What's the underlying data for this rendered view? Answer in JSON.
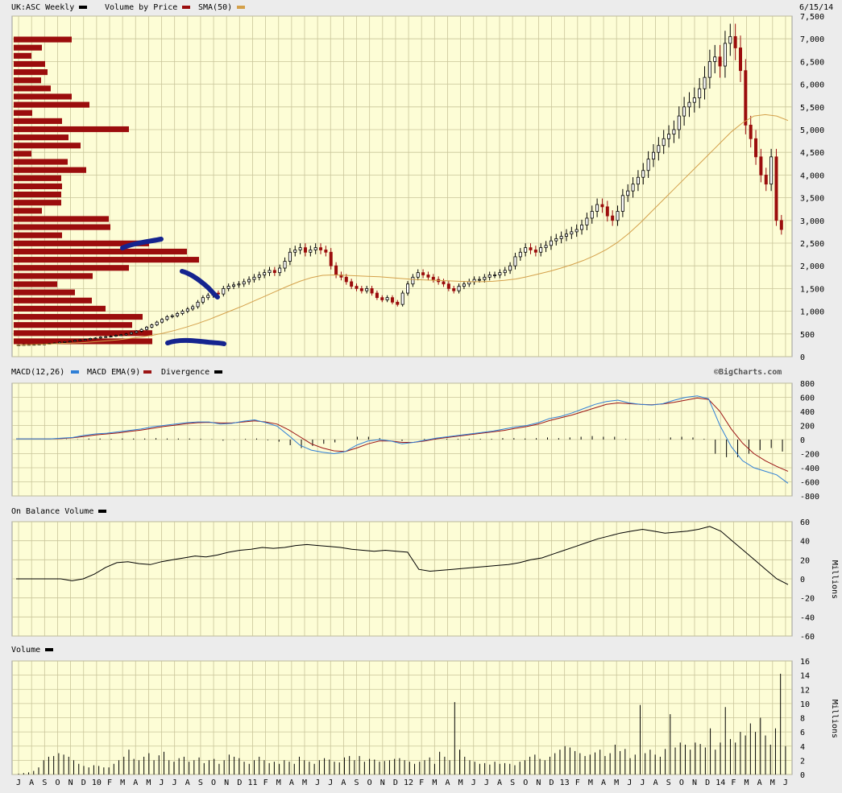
{
  "header": {
    "symbol_label": "UK:ASC Weekly",
    "vbp_label": "Volume by Price",
    "sma_label": "SMA(50)",
    "date": "6/15/14",
    "colors": {
      "price": "#000000",
      "vbp": "#9b0d0d",
      "sma": "#d4a04a"
    }
  },
  "macd_header": {
    "macd_label": "MACD(12,26)",
    "ema_label": "MACD EMA(9)",
    "div_label": "Divergence",
    "watermark": "©BigCharts.com",
    "colors": {
      "macd": "#2f7fd6",
      "ema": "#9b1414",
      "div": "#000000"
    }
  },
  "obv_header": {
    "label": "On Balance Volume",
    "units": "Millions"
  },
  "vol_header": {
    "label": "Volume",
    "units": "Millions"
  },
  "x_axis": {
    "labels": [
      "J",
      "A",
      "S",
      "O",
      "N",
      "D",
      "10",
      "F",
      "M",
      "A",
      "M",
      "J",
      "J",
      "A",
      "S",
      "O",
      "N",
      "D",
      "11",
      "F",
      "M",
      "A",
      "M",
      "J",
      "J",
      "A",
      "S",
      "O",
      "N",
      "D",
      "12",
      "F",
      "M",
      "A",
      "M",
      "J",
      "J",
      "A",
      "S",
      "O",
      "N",
      "D",
      "13",
      "F",
      "M",
      "A",
      "M",
      "J",
      "J",
      "A",
      "S",
      "O",
      "N",
      "D",
      "14",
      "F",
      "M",
      "A",
      "M",
      "J"
    ]
  },
  "chart_data": [
    {
      "type": "candlestick",
      "name": "price",
      "ylim": [
        0,
        7500
      ],
      "yticks": [
        0,
        500,
        1000,
        1500,
        2000,
        2500,
        3000,
        3500,
        4000,
        4500,
        5000,
        5500,
        6000,
        6500,
        7000,
        7500
      ],
      "grid": true,
      "close_series_approx": [
        260,
        265,
        268,
        270,
        275,
        280,
        290,
        300,
        320,
        330,
        340,
        360,
        370,
        380,
        400,
        410,
        430,
        440,
        450,
        470,
        480,
        500,
        530,
        560,
        600,
        650,
        700,
        760,
        820,
        880,
        900,
        950,
        1000,
        1050,
        1100,
        1200,
        1300,
        1350,
        1400,
        1380,
        1500,
        1550,
        1580,
        1600,
        1650,
        1700,
        1750,
        1800,
        1850,
        1900,
        1850,
        1950,
        2100,
        2300,
        2350,
        2400,
        2300,
        2350,
        2400,
        2350,
        2300,
        2000,
        1800,
        1750,
        1650,
        1550,
        1500,
        1450,
        1500,
        1400,
        1300,
        1250,
        1300,
        1200,
        1150,
        1400,
        1600,
        1750,
        1850,
        1800,
        1750,
        1700,
        1650,
        1600,
        1500,
        1450,
        1550,
        1600,
        1650,
        1700,
        1700,
        1750,
        1800,
        1800,
        1850,
        1900,
        2000,
        2200,
        2300,
        2400,
        2350,
        2300,
        2400,
        2450,
        2550,
        2600,
        2650,
        2700,
        2750,
        2800,
        2900,
        3050,
        3200,
        3350,
        3300,
        3100,
        3000,
        3200,
        3550,
        3650,
        3800,
        3950,
        4100,
        4350,
        4500,
        4650,
        4800,
        4900,
        5000,
        5300,
        5500,
        5600,
        5700,
        5900,
        6150,
        6500,
        6600,
        6400,
        6900,
        7050,
        6800,
        6300,
        5100,
        4800,
        4400,
        4000,
        3800,
        4400,
        3000,
        2800
      ]
    },
    {
      "type": "bar",
      "name": "volume_by_price",
      "orientation": "horizontal",
      "note_values": "relative bar length per price band, bottom to top",
      "values": [
        172,
        172,
        147,
        160,
        114,
        97,
        76,
        54,
        98,
        143,
        230,
        215,
        168,
        60,
        120,
        118,
        35,
        59,
        59,
        60,
        59,
        90,
        67,
        22,
        83,
        68,
        143,
        60,
        23,
        94,
        72,
        46,
        34,
        42,
        39,
        22,
        35,
        72
      ]
    },
    {
      "type": "line",
      "name": "SMA(50)",
      "ylim": [
        0,
        7500
      ],
      "values_approx": [
        250,
        260,
        270,
        280,
        290,
        300,
        310,
        330,
        350,
        370,
        400,
        430,
        470,
        520,
        580,
        650,
        730,
        820,
        920,
        1020,
        1120,
        1230,
        1340,
        1450,
        1560,
        1660,
        1740,
        1790,
        1800,
        1790,
        1780,
        1770,
        1760,
        1740,
        1720,
        1700,
        1690,
        1680,
        1670,
        1660,
        1650,
        1650,
        1660,
        1680,
        1710,
        1760,
        1820,
        1880,
        1950,
        2030,
        2120,
        2230,
        2360,
        2520,
        2720,
        2950,
        3200,
        3450,
        3700,
        3950,
        4200,
        4450,
        4700,
        4950,
        5150,
        5300,
        5330,
        5300,
        5200
      ]
    },
    {
      "type": "line",
      "name": "MACD",
      "ylim": [
        -800,
        800
      ],
      "yticks": [
        800,
        600,
        400,
        200,
        0,
        -200,
        -400,
        -600,
        -800
      ],
      "series": [
        {
          "name": "MACD(12,26)",
          "values_approx": [
            10,
            10,
            10,
            10,
            20,
            30,
            60,
            80,
            90,
            110,
            130,
            150,
            180,
            200,
            220,
            240,
            250,
            250,
            220,
            230,
            260,
            280,
            240,
            190,
            60,
            -80,
            -150,
            -180,
            -200,
            -170,
            -80,
            -20,
            0,
            -20,
            -60,
            -40,
            -10,
            20,
            40,
            60,
            80,
            100,
            120,
            150,
            180,
            200,
            240,
            300,
            330,
            380,
            440,
            500,
            540,
            560,
            520,
            500,
            490,
            510,
            560,
            600,
            620,
            580,
            200,
            -100,
            -300,
            -400,
            -450,
            -500,
            -620
          ]
        },
        {
          "name": "MACD EMA(9)",
          "values_approx": [
            10,
            10,
            10,
            10,
            15,
            25,
            45,
            65,
            80,
            95,
            115,
            135,
            160,
            185,
            205,
            225,
            240,
            245,
            235,
            235,
            250,
            265,
            250,
            220,
            140,
            40,
            -60,
            -120,
            -160,
            -170,
            -120,
            -60,
            -20,
            -20,
            -40,
            -40,
            -20,
            10,
            30,
            50,
            70,
            90,
            110,
            130,
            160,
            185,
            220,
            270,
            310,
            350,
            400,
            450,
            500,
            520,
            510,
            500,
            495,
            505,
            530,
            560,
            590,
            570,
            400,
            150,
            -50,
            -200,
            -300,
            -380,
            -450
          ]
        },
        {
          "name": "Divergence",
          "values_approx": [
            0,
            0,
            0,
            0,
            5,
            5,
            15,
            15,
            10,
            15,
            15,
            15,
            20,
            15,
            15,
            15,
            10,
            5,
            -15,
            -5,
            10,
            15,
            -10,
            -30,
            -80,
            -120,
            -90,
            -60,
            -40,
            0,
            40,
            40,
            20,
            0,
            -20,
            0,
            10,
            10,
            10,
            10,
            10,
            10,
            10,
            20,
            20,
            15,
            20,
            30,
            20,
            30,
            40,
            50,
            40,
            40,
            10,
            0,
            -5,
            5,
            30,
            40,
            30,
            10,
            -200,
            -250,
            -250,
            -200,
            -150,
            -120,
            -170
          ]
        }
      ]
    },
    {
      "type": "line",
      "name": "On Balance Volume",
      "ylim": [
        -60,
        60
      ],
      "yticks": [
        60,
        40,
        20,
        0,
        -20,
        -40,
        -60
      ],
      "values_approx": [
        0,
        0,
        0,
        0,
        0,
        -2,
        0,
        5,
        12,
        17,
        18,
        16,
        15,
        18,
        20,
        22,
        24,
        23,
        25,
        28,
        30,
        31,
        33,
        32,
        33,
        35,
        36,
        35,
        34,
        33,
        31,
        30,
        29,
        30,
        29,
        28,
        10,
        8,
        9,
        10,
        11,
        12,
        13,
        14,
        15,
        17,
        20,
        22,
        26,
        30,
        34,
        38,
        42,
        45,
        48,
        50,
        52,
        50,
        48,
        49,
        50,
        52,
        55,
        50,
        40,
        30,
        20,
        10,
        0,
        -6
      ]
    },
    {
      "type": "bar",
      "name": "Volume",
      "ylim": [
        0,
        16
      ],
      "yticks": [
        16,
        14,
        12,
        10,
        8,
        6,
        4,
        2,
        0
      ],
      "values_approx": [
        0.1,
        0.2,
        0.3,
        0.5,
        1,
        2,
        2.5,
        2.6,
        3,
        2.8,
        2.5,
        2,
        1.5,
        1.2,
        1,
        1.3,
        1.2,
        1,
        1,
        1.5,
        2,
        2.5,
        3.5,
        2.2,
        2,
        2.5,
        3,
        2,
        2.7,
        3.2,
        2,
        1.8,
        2.3,
        2.5,
        1.8,
        2,
        2.4,
        1.6,
        2,
        2.2,
        1.5,
        2,
        2.8,
        2.5,
        2.3,
        1.8,
        1.5,
        2,
        2.5,
        2,
        1.6,
        1.8,
        1.5,
        2,
        1.8,
        1.5,
        2.5,
        2,
        1.8,
        1.5,
        2,
        2.3,
        2.1,
        1.8,
        1.7,
        2.4,
        2.6,
        2,
        2.6,
        1.8,
        2.2,
        2.1,
        1.8,
        1.9,
        2,
        2.2,
        2.3,
        2,
        1.8,
        1.5,
        1.8,
        2,
        2.4,
        1.5,
        3.2,
        2.5,
        2,
        10.2,
        3.5,
        2.5,
        2,
        1.8,
        1.5,
        1.6,
        1.4,
        1.8,
        1.5,
        1.6,
        1.5,
        1.3,
        1.8,
        2,
        2.5,
        2.8,
        2.2,
        2,
        2.5,
        3,
        3.5,
        4,
        3.8,
        3.3,
        3,
        2.6,
        2.8,
        3.1,
        3.5,
        2.6,
        3,
        4.2,
        3.3,
        3.6,
        2.3,
        2.8,
        9.8,
        3,
        3.5,
        2.8,
        2.5,
        3.6,
        8.5,
        3.8,
        4.5,
        4.2,
        3.5,
        4.5,
        4.3,
        3.8,
        6.5,
        3.5,
        4.5,
        9.5,
        5,
        4.5,
        6,
        5.5,
        7.2,
        6,
        8,
        5.5,
        4.2,
        6.5,
        14.2,
        4
      ]
    }
  ]
}
